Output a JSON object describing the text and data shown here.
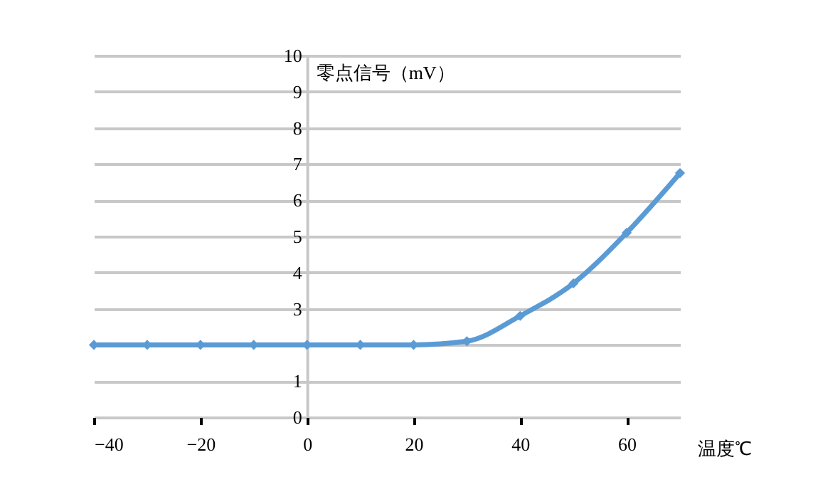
{
  "chart_data": {
    "type": "line",
    "xlabel": "温度℃",
    "ylabel": "零点信号（mV）",
    "x": [
      -40,
      -30,
      -20,
      -10,
      0,
      10,
      20,
      30,
      40,
      50,
      60,
      70
    ],
    "series": [
      {
        "color": "#5b9bd5",
        "values": [
          2,
          2,
          2,
          2,
          2,
          2,
          2,
          2.1,
          2.8,
          3.7,
          5.1,
          6.75
        ]
      }
    ],
    "xlim": [
      -40,
      70
    ],
    "xticks": [
      -40,
      -20,
      0,
      20,
      40,
      60
    ],
    "ylim": [
      0,
      10
    ],
    "yticks": [
      0,
      1,
      {
        "value": 2,
        "label": null
      },
      3,
      4,
      5,
      6,
      7,
      8,
      9,
      10
    ],
    "grid": "y",
    "marker": "diamond",
    "line_style": "solid"
  }
}
